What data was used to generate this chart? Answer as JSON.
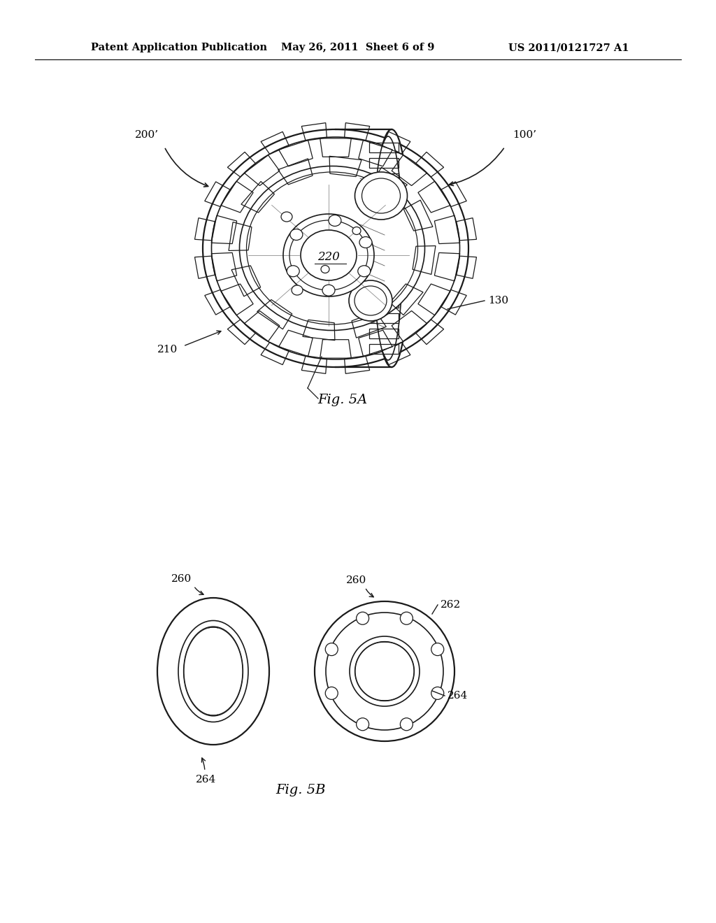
{
  "background_color": "#ffffff",
  "header_left": "Patent Application Publication",
  "header_center": "May 26, 2011  Sheet 6 of 9",
  "header_right": "US 2011/0121727 A1",
  "header_fontsize": 10.5,
  "fig5a_label": "Fig. 5A",
  "fig5b_label": "Fig. 5B",
  "label_200": "200’",
  "label_100": "100’",
  "label_130": "130",
  "label_210": "210",
  "label_220": "220",
  "label_260a": "260",
  "label_260b": "260",
  "label_262": "262",
  "label_264a": "264",
  "label_264b": "264"
}
